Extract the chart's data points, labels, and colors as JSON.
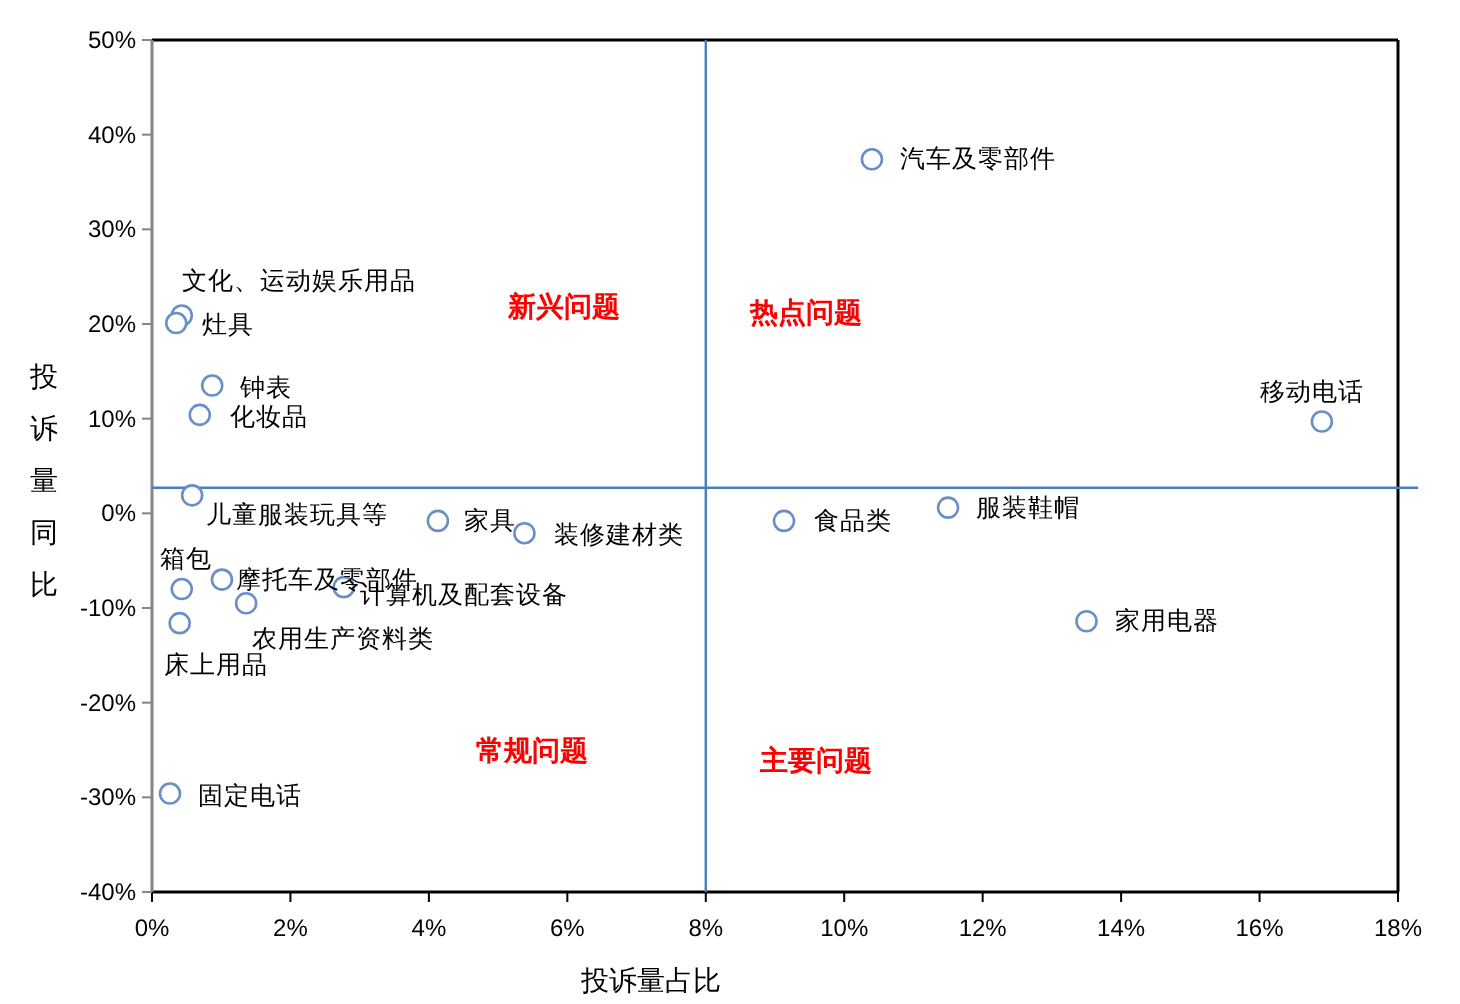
{
  "chart_data": {
    "type": "scatter",
    "xlabel": "投诉量占比",
    "ylabel": "投诉量同比",
    "marker": "circle",
    "color": "#6a8fc7",
    "x": [
      10.4,
      16.9,
      0.43,
      0.35,
      0.87,
      0.69,
      0.58,
      4.13,
      5.38,
      9.13,
      11.5,
      13.5,
      0.43,
      1.01,
      2.77,
      1.36,
      0.4,
      0.26
    ],
    "values": [
      37.4,
      9.7,
      20.9,
      20.1,
      13.5,
      10.4,
      1.9,
      -0.8,
      -2.1,
      -0.8,
      0.6,
      -11.4,
      -8.0,
      -7.0,
      -7.8,
      -9.5,
      -11.6,
      -29.6
    ],
    "xlim": [
      0,
      18
    ],
    "xticks": [
      {
        "value": 0,
        "label": "0%"
      },
      {
        "value": 2,
        "label": "2%"
      },
      {
        "value": 4,
        "label": "4%"
      },
      {
        "value": 6,
        "label": "6%"
      },
      {
        "value": 8,
        "label": "8%"
      },
      {
        "value": 10,
        "label": "10%"
      },
      {
        "value": 12,
        "label": "12%"
      },
      {
        "value": 14,
        "label": "14%"
      },
      {
        "value": 16,
        "label": "16%"
      },
      {
        "value": 18,
        "label": "18%"
      }
    ],
    "ylim": [
      -40,
      50
    ],
    "yticks": [
      {
        "value": -40,
        "label": "-40%"
      },
      {
        "value": -30,
        "label": "-30%"
      },
      {
        "value": -20,
        "label": "-20%"
      },
      {
        "value": -10,
        "label": "-10%"
      },
      {
        "value": 0,
        "label": "0%"
      },
      {
        "value": 10,
        "label": "10%"
      },
      {
        "value": 20,
        "label": "20%"
      },
      {
        "value": 30,
        "label": "30%"
      },
      {
        "value": 40,
        "label": "40%"
      },
      {
        "value": 50,
        "label": "50%"
      }
    ],
    "ref_lines": [
      {
        "axis": "x",
        "value": 8,
        "color": "#4a7ebb"
      },
      {
        "axis": "y",
        "value": 2.7,
        "color": "#4a7ebb"
      }
    ],
    "annotations": [
      {
        "text": "汽车及零部件",
        "x": 10.4,
        "y": 37.4
      },
      {
        "text": "移动电话",
        "x": 16.9,
        "y": 9.7
      },
      {
        "text": "文化、运动娱乐用品",
        "x": 0.43,
        "y": 20.9
      },
      {
        "text": "灶具",
        "x": 0.35,
        "y": 20.1
      },
      {
        "text": "钟表",
        "x": 0.87,
        "y": 13.5
      },
      {
        "text": "化妆品",
        "x": 0.69,
        "y": 10.4
      },
      {
        "text": "儿童服装玩具等",
        "x": 0.58,
        "y": 1.9
      },
      {
        "text": "家具",
        "x": 4.13,
        "y": -0.8
      },
      {
        "text": "装修建材类",
        "x": 5.38,
        "y": -2.1
      },
      {
        "text": "食品类",
        "x": 9.13,
        "y": -0.8
      },
      {
        "text": "服装鞋帽",
        "x": 11.5,
        "y": 0.6
      },
      {
        "text": "家用电器",
        "x": 13.5,
        "y": -11.4
      },
      {
        "text": "箱包",
        "x": 0.43,
        "y": -8.0
      },
      {
        "text": "摩托车及零部件",
        "x": 1.01,
        "y": -7.0
      },
      {
        "text": "计算机及配套设备",
        "x": 2.77,
        "y": -7.8
      },
      {
        "text": "农用生产资料类",
        "x": 1.36,
        "y": -9.5
      },
      {
        "text": "床上用品",
        "x": 0.4,
        "y": -11.6
      },
      {
        "text": "固定电话",
        "x": 0.26,
        "y": -29.6
      },
      "新兴问题",
      "热点问题",
      "常规问题",
      "主要问题"
    ]
  }
}
